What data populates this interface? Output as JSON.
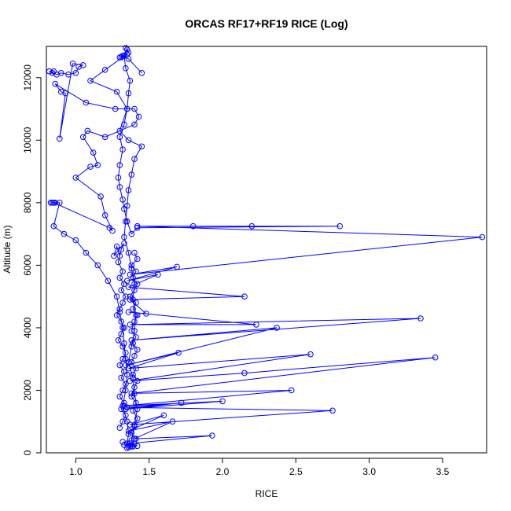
{
  "chart_data": {
    "type": "line",
    "title": "ORCAS RF17+RF19 RICE (Log)",
    "xlabel": "RICE",
    "ylabel": "Altitude (m)",
    "xlim": [
      0.8,
      3.8
    ],
    "ylim": [
      0,
      13000
    ],
    "x_ticks": [
      1.0,
      1.5,
      2.0,
      2.5,
      3.0,
      3.5
    ],
    "x_tick_labels": [
      "1.0",
      "1.5",
      "2.0",
      "2.5",
      "3.0",
      "3.5"
    ],
    "y_ticks": [
      0,
      2000,
      4000,
      6000,
      8000,
      10000,
      12000
    ],
    "y_tick_labels": [
      "0",
      "2000",
      "4000",
      "6000",
      "8000",
      "10000",
      "12000"
    ],
    "grid": false,
    "series": [
      {
        "color": "#0000ff",
        "marker": "open-circle",
        "points": [
          [
            1.35,
            150
          ],
          [
            1.38,
            200
          ],
          [
            1.33,
            250
          ],
          [
            1.4,
            300
          ],
          [
            1.36,
            180
          ],
          [
            1.42,
            220
          ],
          [
            1.32,
            350
          ],
          [
            1.37,
            300
          ],
          [
            1.93,
            550
          ],
          [
            1.4,
            450
          ],
          [
            1.66,
            1000
          ],
          [
            1.36,
            700
          ],
          [
            1.6,
            1200
          ],
          [
            1.37,
            900
          ],
          [
            2.75,
            1350
          ],
          [
            1.35,
            1450
          ],
          [
            1.72,
            1600
          ],
          [
            1.34,
            1400
          ],
          [
            2.0,
            1650
          ],
          [
            1.33,
            1500
          ],
          [
            2.47,
            2000
          ],
          [
            1.38,
            1900
          ],
          [
            3.45,
            3050
          ],
          [
            2.15,
            2550
          ],
          [
            1.37,
            2300
          ],
          [
            2.6,
            3150
          ],
          [
            1.36,
            2700
          ],
          [
            1.7,
            3200
          ],
          [
            1.34,
            2800
          ],
          [
            2.37,
            4000
          ],
          [
            1.38,
            3600
          ],
          [
            3.35,
            4300
          ],
          [
            1.37,
            4100
          ],
          [
            2.23,
            4100
          ],
          [
            1.36,
            4500
          ],
          [
            1.48,
            4450
          ],
          [
            1.37,
            4900
          ],
          [
            2.15,
            5000
          ],
          [
            1.36,
            5300
          ],
          [
            1.56,
            5700
          ],
          [
            1.35,
            5500
          ],
          [
            1.69,
            5950
          ],
          [
            1.37,
            5700
          ],
          [
            3.77,
            6900
          ],
          [
            1.42,
            7250
          ],
          [
            1.8,
            7250
          ],
          [
            2.2,
            7250
          ],
          [
            2.8,
            7250
          ],
          [
            1.42,
            7200
          ],
          [
            1.38,
            7000
          ],
          [
            1.35,
            7400
          ],
          [
            1.33,
            7800
          ],
          [
            1.32,
            8100
          ],
          [
            1.3,
            8500
          ],
          [
            1.29,
            8800
          ],
          [
            1.3,
            9200
          ],
          [
            1.32,
            9700
          ],
          [
            1.3,
            10100
          ],
          [
            1.33,
            10500
          ],
          [
            1.35,
            11000
          ],
          [
            1.36,
            11500
          ],
          [
            1.37,
            11900
          ],
          [
            1.34,
            12300
          ],
          [
            1.33,
            12700
          ],
          [
            1.35,
            12900
          ],
          [
            1.31,
            12650
          ],
          [
            1.36,
            12800
          ],
          [
            1.34,
            12950
          ]
        ]
      },
      {
        "color": "#0000ff",
        "marker": "open-circle",
        "points": [
          [
            0.85,
            12200
          ],
          [
            0.84,
            12150
          ],
          [
            0.82,
            12200
          ],
          [
            0.87,
            12100
          ],
          [
            0.9,
            12150
          ],
          [
            0.95,
            12100
          ],
          [
            1.0,
            12150
          ],
          [
            1.02,
            12350
          ],
          [
            1.05,
            12400
          ],
          [
            0.98,
            12450
          ],
          [
            0.89,
            10050
          ],
          [
            0.93,
            11500
          ],
          [
            0.9,
            11550
          ],
          [
            0.86,
            11800
          ],
          [
            1.07,
            11200
          ],
          [
            1.27,
            11000
          ],
          [
            1.4,
            11000
          ],
          [
            1.43,
            10750
          ],
          [
            1.4,
            10500
          ],
          [
            1.2,
            10100
          ],
          [
            1.08,
            10300
          ],
          [
            1.05,
            10100
          ],
          [
            1.12,
            9600
          ],
          [
            1.15,
            9200
          ],
          [
            1.1,
            9150
          ],
          [
            1.0,
            8800
          ],
          [
            1.17,
            8200
          ],
          [
            1.2,
            7600
          ],
          [
            1.25,
            7100
          ],
          [
            1.23,
            7200
          ],
          [
            0.85,
            8000
          ],
          [
            0.83,
            8000
          ],
          [
            0.86,
            8000
          ],
          [
            0.84,
            8000
          ],
          [
            0.89,
            8000
          ],
          [
            0.85,
            7250
          ],
          [
            0.92,
            7000
          ],
          [
            1.0,
            6800
          ],
          [
            1.07,
            6400
          ],
          [
            1.15,
            6000
          ],
          [
            1.22,
            5500
          ],
          [
            1.28,
            5000
          ],
          [
            1.3,
            4500
          ],
          [
            1.32,
            4000
          ],
          [
            1.33,
            3500
          ],
          [
            1.34,
            3000
          ],
          [
            1.35,
            2500
          ],
          [
            1.34,
            2000
          ],
          [
            1.32,
            1500
          ],
          [
            1.35,
            1000
          ],
          [
            1.36,
            600
          ],
          [
            1.35,
            300
          ],
          [
            1.37,
            200
          ]
        ]
      },
      {
        "color": "#0000ff",
        "marker": "open-circle",
        "points": [
          [
            1.45,
            12150
          ],
          [
            1.36,
            12600
          ],
          [
            1.32,
            12700
          ],
          [
            1.3,
            12650
          ],
          [
            1.35,
            12750
          ],
          [
            1.2,
            12250
          ],
          [
            1.1,
            11900
          ],
          [
            1.28,
            11550
          ],
          [
            1.35,
            11000
          ],
          [
            1.3,
            10300
          ],
          [
            1.36,
            10000
          ],
          [
            1.45,
            9800
          ],
          [
            1.4,
            9400
          ],
          [
            1.38,
            8900
          ],
          [
            1.36,
            8400
          ],
          [
            1.35,
            7900
          ],
          [
            1.34,
            7400
          ],
          [
            1.33,
            6900
          ],
          [
            1.36,
            6400
          ],
          [
            1.38,
            5900
          ],
          [
            1.4,
            5400
          ],
          [
            1.39,
            4900
          ],
          [
            1.41,
            4400
          ],
          [
            1.4,
            3900
          ],
          [
            1.38,
            3400
          ],
          [
            1.36,
            2900
          ],
          [
            1.39,
            2400
          ],
          [
            1.4,
            1900
          ],
          [
            1.42,
            1400
          ],
          [
            1.4,
            900
          ],
          [
            1.38,
            400
          ],
          [
            1.39,
            200
          ]
        ]
      },
      {
        "color": "#0000ff",
        "marker": "open-circle",
        "points": [
          [
            1.3,
            6300
          ],
          [
            1.28,
            6600
          ],
          [
            1.26,
            6300
          ],
          [
            1.33,
            6700
          ],
          [
            1.31,
            6500
          ],
          [
            1.29,
            6100
          ],
          [
            1.32,
            5800
          ],
          [
            1.3,
            5600
          ],
          [
            1.33,
            5400
          ],
          [
            1.31,
            5200
          ],
          [
            1.34,
            5000
          ],
          [
            1.32,
            4800
          ],
          [
            1.3,
            4600
          ],
          [
            1.28,
            4400
          ],
          [
            1.31,
            4200
          ],
          [
            1.33,
            4000
          ],
          [
            1.31,
            3800
          ],
          [
            1.29,
            3600
          ],
          [
            1.32,
            3400
          ],
          [
            1.34,
            3200
          ],
          [
            1.32,
            3000
          ],
          [
            1.3,
            2800
          ],
          [
            1.33,
            2600
          ],
          [
            1.31,
            2400
          ],
          [
            1.34,
            2200
          ],
          [
            1.32,
            2000
          ],
          [
            1.3,
            1800
          ],
          [
            1.33,
            1600
          ],
          [
            1.31,
            1400
          ],
          [
            1.34,
            1200
          ],
          [
            1.32,
            1000
          ],
          [
            1.3,
            800
          ]
        ]
      },
      {
        "color": "#0000ff",
        "marker": "open-circle",
        "points": [
          [
            1.4,
            6400
          ],
          [
            1.42,
            6200
          ],
          [
            1.38,
            6000
          ],
          [
            1.41,
            5800
          ],
          [
            1.39,
            5600
          ],
          [
            1.42,
            5400
          ],
          [
            1.4,
            5200
          ],
          [
            1.37,
            5000
          ],
          [
            1.41,
            4800
          ],
          [
            1.39,
            4600
          ],
          [
            1.42,
            4400
          ],
          [
            1.4,
            4200
          ],
          [
            1.38,
            3900
          ],
          [
            1.41,
            3700
          ],
          [
            1.39,
            3500
          ],
          [
            1.42,
            3300
          ],
          [
            1.4,
            3100
          ],
          [
            1.38,
            2900
          ],
          [
            1.41,
            2700
          ],
          [
            1.39,
            2500
          ],
          [
            1.42,
            2300
          ],
          [
            1.4,
            2100
          ],
          [
            1.38,
            1800
          ],
          [
            1.41,
            1600
          ],
          [
            1.39,
            1350
          ],
          [
            1.42,
            1100
          ],
          [
            1.4,
            850
          ],
          [
            1.38,
            650
          ],
          [
            1.41,
            450
          ]
        ]
      }
    ]
  }
}
